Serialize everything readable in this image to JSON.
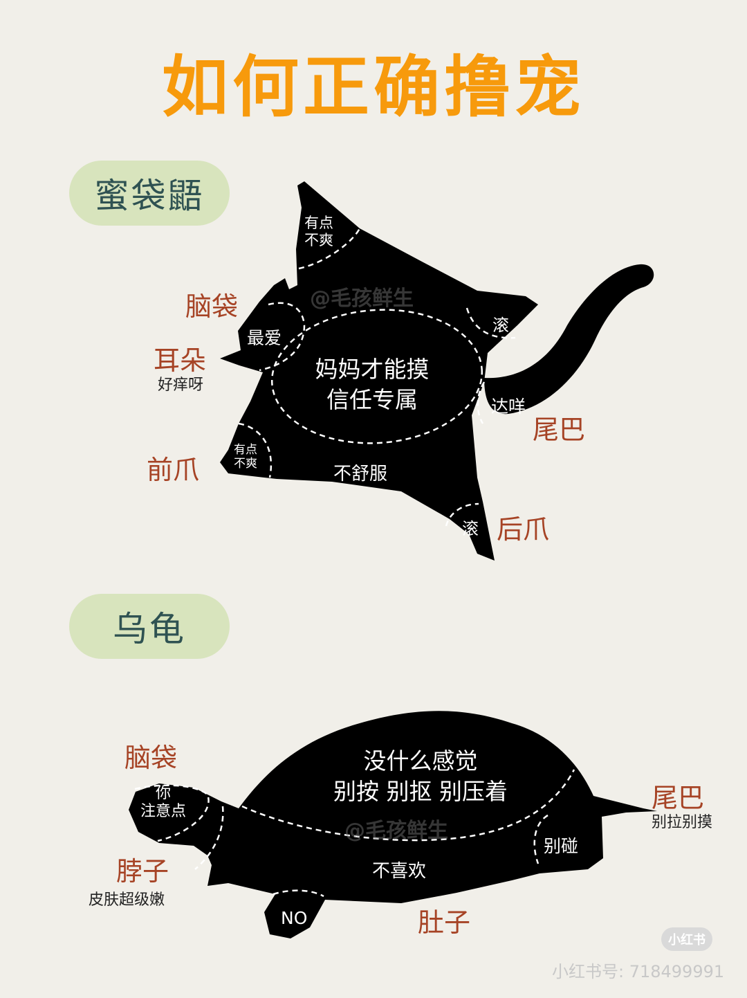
{
  "title": "如何正确撸宠",
  "glider": {
    "section_label": "蜜袋鼯",
    "labels": {
      "head": "脑袋",
      "ear": "耳朵",
      "ear_note": "好痒呀",
      "front_paw": "前爪",
      "tail": "尾巴",
      "hind_paw": "后爪"
    },
    "zones": {
      "top": "有点\n不爽",
      "head": "最爱",
      "back_line1": "妈妈才能摸",
      "back_line2": "信任专属",
      "right_wing": "滚",
      "tail_base": "达咩",
      "front_paw": "有点\n不爽",
      "belly": "不舒服",
      "hind_paw": "滚"
    },
    "watermark": "@毛孩鲜生"
  },
  "turtle": {
    "section_label": "乌龟",
    "labels": {
      "head": "脑袋",
      "neck": "脖子",
      "neck_note": "皮肤超级嫩",
      "tail": "尾巴",
      "tail_note": "别拉别摸",
      "belly": "肚子"
    },
    "zones": {
      "head": "你\n注意点",
      "shell_line1": "没什么感觉",
      "shell_line2": "别按 别抠 别压着",
      "rear": "别碰",
      "belly": "不喜欢",
      "leg": "NO"
    },
    "watermark": "@毛孩鲜生"
  },
  "footer": {
    "logo": "小红书",
    "id": "小红书号: 718499991"
  }
}
